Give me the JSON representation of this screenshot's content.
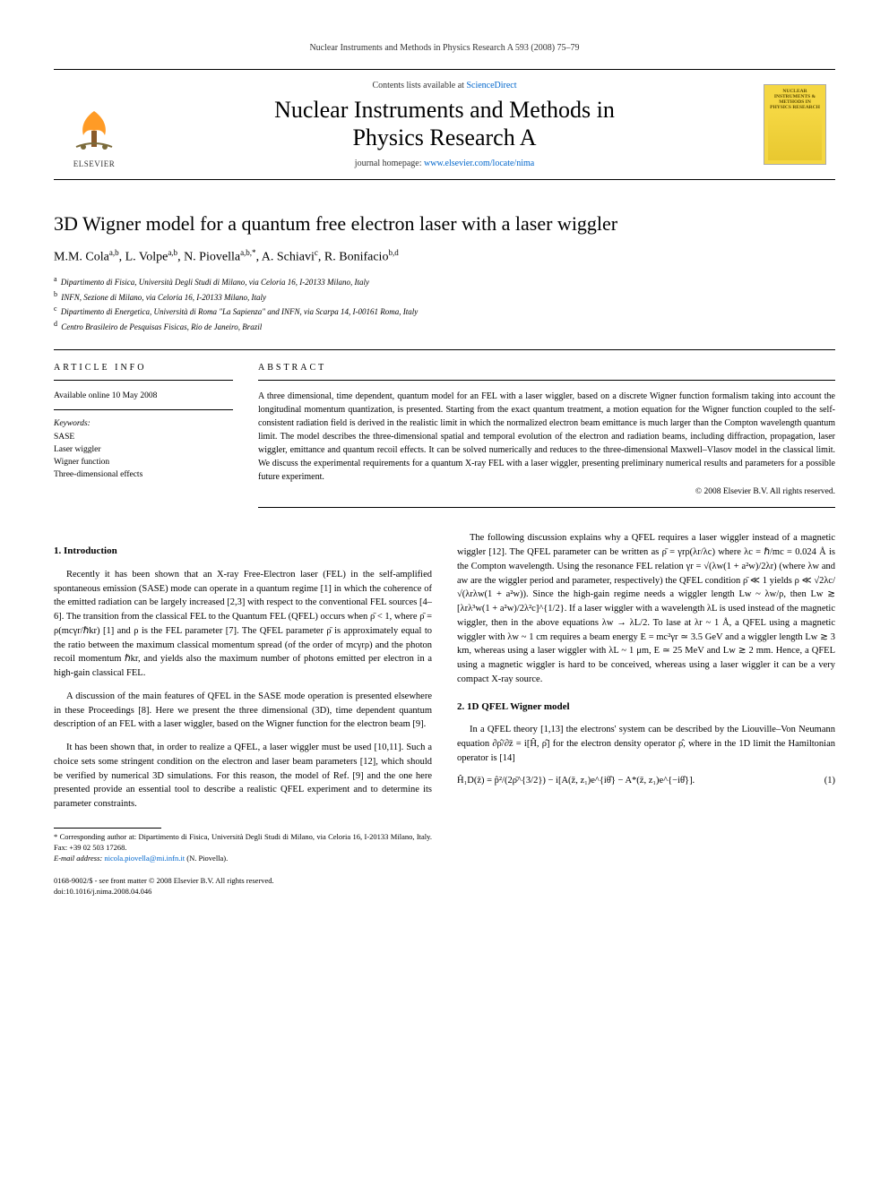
{
  "running_head": "Nuclear Instruments and Methods in Physics Research A 593 (2008) 75–79",
  "masthead": {
    "contents_prefix": "Contents lists available at ",
    "contents_link": "ScienceDirect",
    "journal_line1": "Nuclear Instruments and Methods in",
    "journal_line2": "Physics Research A",
    "homepage_prefix": "journal homepage: ",
    "homepage_link": "www.elsevier.com/locate/nima",
    "publisher_label": "ELSEVIER",
    "cover_title": "NUCLEAR INSTRUMENTS & METHODS IN PHYSICS RESEARCH"
  },
  "title": "3D Wigner model for a quantum free electron laser with a laser wiggler",
  "authors_html": "M.M. Cola<sup>a,b</sup>, L. Volpe<sup>a,b</sup>, N. Piovella<sup>a,b,*</sup>, A. Schiavi<sup>c</sup>, R. Bonifacio<sup>b,d</sup>",
  "affiliations": [
    {
      "sup": "a",
      "text": "Dipartimento di Fisica, Università Degli Studi di Milano, via Celoria 16, I-20133 Milano, Italy"
    },
    {
      "sup": "b",
      "text": "INFN, Sezione di Milano, via Celoria 16, I-20133 Milano, Italy"
    },
    {
      "sup": "c",
      "text": "Dipartimento di Energetica, Università di Roma \"La Sapienza\" and INFN, via Scarpa 14, I-00161 Roma, Italy"
    },
    {
      "sup": "d",
      "text": "Centro Brasileiro de Pesquisas Fisicas, Rio de Janeiro, Brazil"
    }
  ],
  "info": {
    "head": "ARTICLE INFO",
    "available": "Available online 10 May 2008",
    "keywords_head": "Keywords:",
    "keywords": [
      "SASE",
      "Laser wiggler",
      "Wigner function",
      "Three-dimensional effects"
    ]
  },
  "abstract": {
    "head": "ABSTRACT",
    "text": "A three dimensional, time dependent, quantum model for an FEL with a laser wiggler, based on a discrete Wigner function formalism taking into account the longitudinal momentum quantization, is presented. Starting from the exact quantum treatment, a motion equation for the Wigner function coupled to the self-consistent radiation field is derived in the realistic limit in which the normalized electron beam emittance is much larger than the Compton wavelength quantum limit. The model describes the three-dimensional spatial and temporal evolution of the electron and radiation beams, including diffraction, propagation, laser wiggler, emittance and quantum recoil effects. It can be solved numerically and reduces to the three-dimensional Maxwell–Vlasov model in the classical limit. We discuss the experimental requirements for a quantum X-ray FEL with a laser wiggler, presenting preliminary numerical results and parameters for a possible future experiment.",
    "copyright": "© 2008 Elsevier B.V. All rights reserved."
  },
  "sections": {
    "s1_head": "1. Introduction",
    "s1_p1": "Recently it has been shown that an X-ray Free-Electron laser (FEL) in the self-amplified spontaneous emission (SASE) mode can operate in a quantum regime [1] in which the coherence of the emitted radiation can be largely increased [2,3] with respect to the conventional FEL sources [4–6]. The transition from the classical FEL to the Quantum FEL (QFEL) occurs when ρ̄ < 1, where ρ̄ = ρ(mcγr/ℏkr) [1] and ρ is the FEL parameter [7]. The QFEL parameter ρ̄ is approximately equal to the ratio between the maximum classical momentum spread (of the order of mcγrρ) and the photon recoil momentum ℏkr, and yields also the maximum number of photons emitted per electron in a high-gain classical FEL.",
    "s1_p2": "A discussion of the main features of QFEL in the SASE mode operation is presented elsewhere in these Proceedings [8]. Here we present the three dimensional (3D), time dependent quantum description of an FEL with a laser wiggler, based on the Wigner function for the electron beam [9].",
    "s1_p3": "It has been shown that, in order to realize a QFEL, a laser wiggler must be used [10,11]. Such a choice sets some stringent condition on the electron and laser beam parameters [12], which should be verified by numerical 3D simulations. For this reason, the model of Ref. [9] and the one here presented provide an essential tool to describe a realistic QFEL experiment and to determine its parameter constraints.",
    "s1_p4": "The following discussion explains why a QFEL requires a laser wiggler instead of a magnetic wiggler [12]. The QFEL parameter can be written as ρ̄ = γrρ(λr/λc) where λc = ℏ/mc = 0.024 Å is the Compton wavelength. Using the resonance FEL relation γr = √(λw(1 + a²w)/2λr) (where λw and aw are the wiggler period and parameter, respectively) the QFEL condition ρ̄ ≪ 1 yields ρ ≪ √2λc/√(λrλw(1 + a²w)). Since the high-gain regime needs a wiggler length Lw ~ λw/ρ, then Lw ≳ [λrλ³w(1 + a²w)/2λ²c]^{1/2}. If a laser wiggler with a wavelength λL is used instead of the magnetic wiggler, then in the above equations λw → λL/2. To lase at λr ~ 1 Å, a QFEL using a magnetic wiggler with λw ~ 1 cm requires a beam energy E = mc²γr ≃ 3.5 GeV and a wiggler length Lw ≳ 3 km, whereas using a laser wiggler with λL ~ 1 μm, E ≃ 25 MeV and Lw ≳ 2 mm. Hence, a QFEL using a magnetic wiggler is hard to be conceived, whereas using a laser wiggler it can be a very compact X-ray source.",
    "s2_head": "2. 1D QFEL Wigner model",
    "s2_p1": "In a QFEL theory [1,13] the electrons' system can be described by the Liouville–Von Neumann equation ∂ρ̂/∂z̄ = i[Ĥ, ρ̂] for the electron density operator ρ̂, where in the 1D limit the Hamiltonian operator is [14]",
    "eq1": "Ĥ₁D(z̄) = p̂²/(2ρ̄^{3/2}) − i[A(z̄, z₁)e^{iθ̂} − A*(z̄, z₁)e^{−iθ̂}].",
    "eq1_num": "(1)"
  },
  "footnote": {
    "corr": "* Corresponding author at: Dipartimento di Fisica, Università Degli Studi di Milano, via Celoria 16, I-20133 Milano, Italy. Fax: +39 02 503 17268.",
    "email_label": "E-mail address: ",
    "email": "nicola.piovella@mi.infn.it",
    "email_who": " (N. Piovella)."
  },
  "bottom": {
    "line1": "0168-9002/$ - see front matter © 2008 Elsevier B.V. All rights reserved.",
    "line2": "doi:10.1016/j.nima.2008.04.046"
  },
  "colors": {
    "link": "#0066cc",
    "cover_bg": "#f5d742",
    "elsevier_orange": "#ff8a00",
    "text": "#000000"
  }
}
